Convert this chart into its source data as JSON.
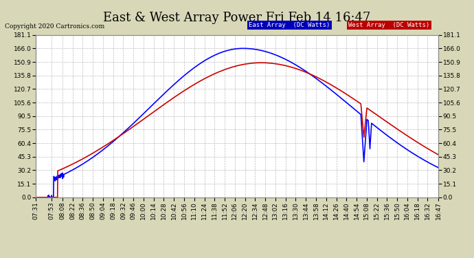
{
  "title": "East & West Array Power Fri Feb 14 16:47",
  "copyright": "Copyright 2020 Cartronics.com",
  "east_label": "East Array  (DC Watts)",
  "west_label": "West Array  (DC Watts)",
  "east_color": "#0000ff",
  "west_color": "#cc0000",
  "east_bg": "#0000bb",
  "west_bg": "#bb0000",
  "ylim": [
    0.0,
    181.1
  ],
  "yticks": [
    0.0,
    15.1,
    30.2,
    45.3,
    60.4,
    75.5,
    90.5,
    105.6,
    120.7,
    135.8,
    150.9,
    166.0,
    181.1
  ],
  "fig_bg": "#d8d8b8",
  "plot_bg": "#ffffff",
  "grid_color": "#bbbbbb",
  "title_fontsize": 13,
  "tick_fontsize": 6.5,
  "x_tick_labels": [
    "07:31",
    "07:53",
    "08:08",
    "08:22",
    "08:36",
    "08:50",
    "09:04",
    "09:18",
    "09:32",
    "09:46",
    "10:00",
    "10:14",
    "10:28",
    "10:42",
    "10:56",
    "11:10",
    "11:24",
    "11:38",
    "11:52",
    "12:06",
    "12:20",
    "12:34",
    "12:48",
    "13:02",
    "13:16",
    "13:30",
    "13:44",
    "13:58",
    "14:12",
    "14:26",
    "14:40",
    "14:54",
    "15:08",
    "15:22",
    "15:36",
    "15:50",
    "16:04",
    "16:18",
    "16:32",
    "16:47"
  ]
}
